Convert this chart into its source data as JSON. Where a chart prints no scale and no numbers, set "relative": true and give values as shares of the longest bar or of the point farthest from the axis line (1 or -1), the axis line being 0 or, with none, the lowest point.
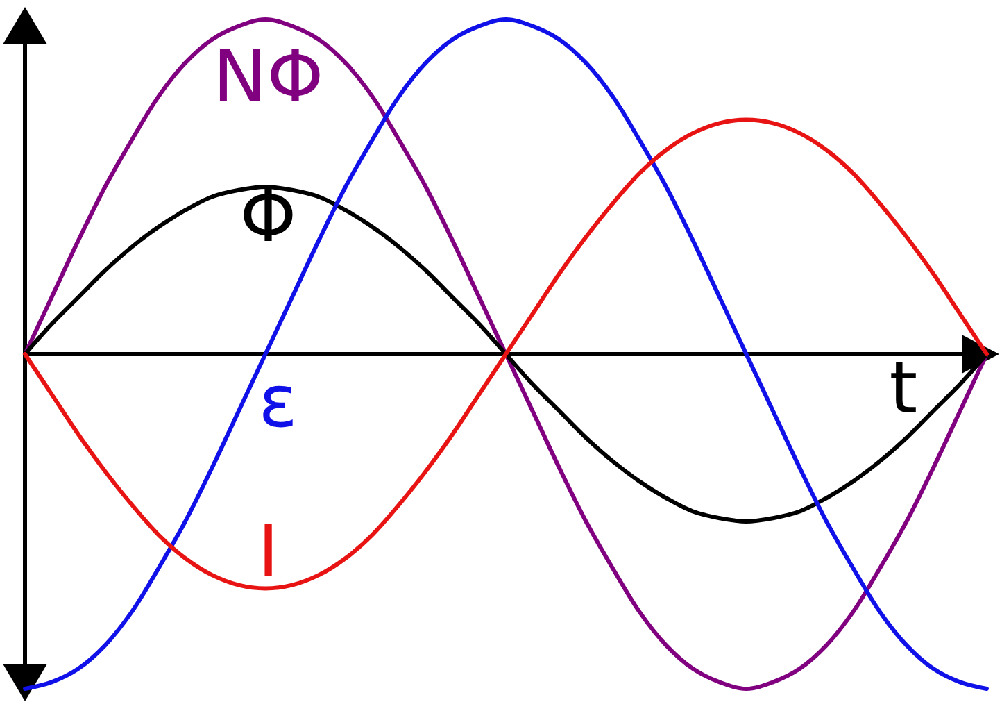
{
  "chart_data": {
    "type": "line",
    "relative": true,
    "xlabel": "t",
    "categories": [
      null,
      null,
      null,
      null,
      null,
      null,
      null,
      null,
      null,
      null,
      null,
      null,
      null,
      null,
      null,
      null,
      null,
      null,
      null,
      null,
      null,
      null,
      null,
      null,
      null,
      null,
      null,
      null,
      null,
      null,
      null,
      null,
      null,
      null,
      null,
      null,
      null
    ],
    "series": [
      {
        "name": "NΦ",
        "color": "#800080",
        "values": [
          0,
          0.17,
          0.34,
          0.5,
          0.64,
          0.77,
          0.87,
          0.94,
          0.98,
          1,
          0.98,
          0.94,
          0.87,
          0.77,
          0.64,
          0.5,
          0.34,
          0.17,
          0,
          -0.17,
          -0.34,
          -0.5,
          -0.64,
          -0.77,
          -0.87,
          -0.94,
          -0.98,
          -1,
          -0.98,
          -0.94,
          -0.87,
          -0.77,
          -0.64,
          -0.5,
          -0.34,
          -0.17,
          0
        ]
      },
      {
        "name": "Φ",
        "color": "#000000",
        "values": [
          0,
          0.09,
          0.17,
          0.25,
          0.32,
          0.38,
          0.43,
          0.47,
          0.49,
          0.5,
          0.49,
          0.47,
          0.43,
          0.38,
          0.32,
          0.25,
          0.17,
          0.09,
          0,
          -0.09,
          -0.17,
          -0.25,
          -0.32,
          -0.38,
          -0.43,
          -0.47,
          -0.49,
          -0.5,
          -0.49,
          -0.47,
          -0.43,
          -0.38,
          -0.32,
          -0.25,
          -0.17,
          -0.09,
          0
        ]
      },
      {
        "name": "ε",
        "color": "#1010e8",
        "values": [
          -1,
          -0.98,
          -0.94,
          -0.87,
          -0.77,
          -0.64,
          -0.5,
          -0.34,
          -0.17,
          0,
          0.17,
          0.34,
          0.5,
          0.64,
          0.77,
          0.87,
          0.94,
          0.98,
          1,
          0.98,
          0.94,
          0.87,
          0.77,
          0.64,
          0.5,
          0.34,
          0.17,
          0,
          -0.17,
          -0.34,
          -0.5,
          -0.64,
          -0.77,
          -0.87,
          -0.94,
          -0.98,
          -1
        ]
      },
      {
        "name": "I",
        "color": "#e81414",
        "values": [
          0,
          -0.12,
          -0.24,
          -0.35,
          -0.45,
          -0.54,
          -0.61,
          -0.66,
          -0.69,
          -0.7,
          -0.69,
          -0.66,
          -0.61,
          -0.54,
          -0.45,
          -0.35,
          -0.24,
          -0.12,
          0,
          0.12,
          0.24,
          0.35,
          0.45,
          0.54,
          0.61,
          0.66,
          0.69,
          0.7,
          0.69,
          0.66,
          0.61,
          0.54,
          0.45,
          0.35,
          0.24,
          0.12,
          0
        ]
      }
    ]
  }
}
